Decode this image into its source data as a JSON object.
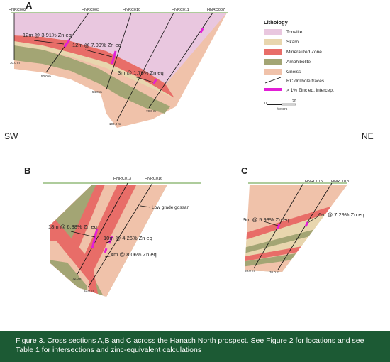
{
  "panels": [
    {
      "label": "A",
      "holes": [
        "HNRC002",
        "HNRC003",
        "HNRC010",
        "HNRC011",
        "HNRC007"
      ],
      "intercepts": [
        "12m @ 3.91% Zn eq",
        "12m @ 7.09% Zn eq",
        "3m @ 1.76% Zn eq"
      ],
      "depths": [
        "30.0 m",
        "50.0 m",
        "54.0 m",
        "100.0 m",
        "70.0 m"
      ]
    },
    {
      "label": "B",
      "holes": [
        "HNRC013",
        "HNRC016"
      ],
      "intercepts": [
        "18m @ 6.38% Zn eq",
        "10m @ 4.26% Zn eq",
        "4m @ 8.06% Zn eq"
      ],
      "depths": [
        "72.0 m",
        "83.0 m"
      ],
      "note": "Low grade gossan"
    },
    {
      "label": "C",
      "holes": [
        "HNRC015",
        "HNRC018"
      ],
      "intercepts": [
        "9m @ 5.93% Zn eq",
        "6m @ 7.29% Zn eq"
      ],
      "depths": [
        "89.0 m",
        "70.0 m"
      ]
    }
  ],
  "orientation": {
    "left": "SW",
    "right": "NE"
  },
  "legend": {
    "title": "Lithology",
    "items": [
      "Tonalite",
      "Skarn",
      "Mineralized Zone",
      "Amphibolite",
      "Gneiss",
      "RC drillhole traces",
      "> 1% Zinc eq. intercept"
    ]
  },
  "scale": {
    "labels": [
      "0",
      "20"
    ],
    "unit": "Meters"
  },
  "caption": "Figure 3. Cross sections A,B and C across the Hanash North prospect. See Figure 2 for locations and see Table 1 for intersections and zinc-equivalent calculations"
}
